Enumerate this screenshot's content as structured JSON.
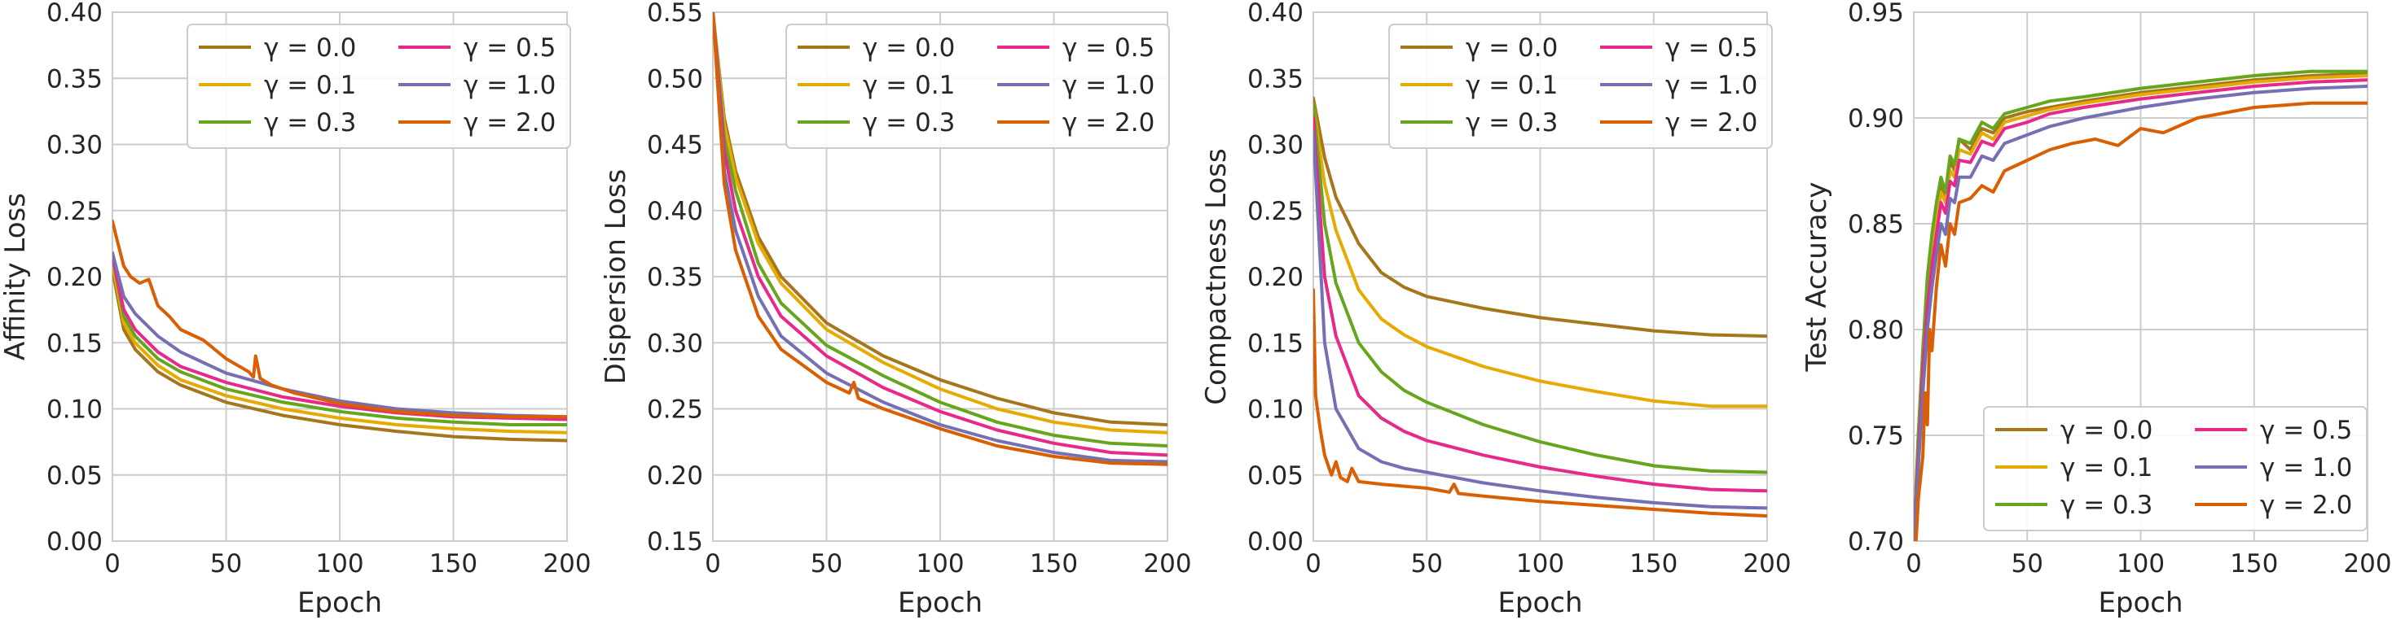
{
  "colors": {
    "g00": "#a6761d",
    "g01": "#e6ab02",
    "g03": "#66a61e",
    "g05": "#e7298a",
    "g10": "#7570b3",
    "g20": "#d95f02"
  },
  "chart_data": [
    {
      "type": "line",
      "title": "",
      "xlabel": "Epoch",
      "ylabel": "Affinity Loss",
      "xlim": [
        0,
        200
      ],
      "ylim": [
        0.0,
        0.4
      ],
      "xticks": [
        "0",
        "50",
        "100",
        "150",
        "200"
      ],
      "yticks": [
        "0.00",
        "0.05",
        "0.10",
        "0.15",
        "0.20",
        "0.25",
        "0.30",
        "0.35",
        "0.40"
      ],
      "grid": true,
      "legend": "upper-right",
      "series": [
        {
          "name": "γ = 0.0",
          "color_key": "g00",
          "x": [
            0,
            5,
            10,
            20,
            30,
            50,
            75,
            100,
            125,
            150,
            175,
            200
          ],
          "y": [
            0.205,
            0.16,
            0.145,
            0.128,
            0.118,
            0.105,
            0.095,
            0.088,
            0.083,
            0.079,
            0.077,
            0.076
          ]
        },
        {
          "name": "γ = 0.1",
          "color_key": "g01",
          "x": [
            0,
            5,
            10,
            20,
            30,
            50,
            75,
            100,
            125,
            150,
            175,
            200
          ],
          "y": [
            0.21,
            0.165,
            0.15,
            0.133,
            0.122,
            0.11,
            0.1,
            0.093,
            0.088,
            0.085,
            0.083,
            0.082
          ]
        },
        {
          "name": "γ = 0.3",
          "color_key": "g03",
          "x": [
            0,
            5,
            10,
            20,
            30,
            50,
            75,
            100,
            125,
            150,
            175,
            200
          ],
          "y": [
            0.215,
            0.17,
            0.155,
            0.138,
            0.128,
            0.115,
            0.105,
            0.098,
            0.093,
            0.09,
            0.088,
            0.088
          ]
        },
        {
          "name": "γ = 0.5",
          "color_key": "g05",
          "x": [
            0,
            5,
            10,
            20,
            30,
            50,
            75,
            100,
            125,
            150,
            175,
            200
          ],
          "y": [
            0.215,
            0.175,
            0.16,
            0.143,
            0.132,
            0.12,
            0.109,
            0.102,
            0.097,
            0.094,
            0.093,
            0.092
          ]
        },
        {
          "name": "γ = 1.0",
          "color_key": "g10",
          "x": [
            0,
            5,
            10,
            20,
            30,
            50,
            75,
            100,
            125,
            150,
            175,
            200
          ],
          "y": [
            0.218,
            0.185,
            0.172,
            0.155,
            0.143,
            0.127,
            0.115,
            0.106,
            0.1,
            0.097,
            0.095,
            0.094
          ]
        },
        {
          "name": "γ = 2.0",
          "color_key": "g20",
          "x": [
            0,
            2,
            5,
            8,
            12,
            16,
            20,
            25,
            30,
            40,
            50,
            60,
            62,
            63,
            65,
            70,
            80,
            100,
            125,
            150,
            175,
            200
          ],
          "y": [
            0.242,
            0.228,
            0.208,
            0.2,
            0.195,
            0.198,
            0.178,
            0.17,
            0.16,
            0.152,
            0.138,
            0.128,
            0.124,
            0.14,
            0.123,
            0.118,
            0.112,
            0.104,
            0.098,
            0.095,
            0.094,
            0.094
          ]
        }
      ]
    },
    {
      "type": "line",
      "title": "",
      "xlabel": "Epoch",
      "ylabel": "Dispersion Loss",
      "xlim": [
        0,
        200
      ],
      "ylim": [
        0.15,
        0.55
      ],
      "xticks": [
        "0",
        "50",
        "100",
        "150",
        "200"
      ],
      "yticks": [
        "0.15",
        "0.20",
        "0.25",
        "0.30",
        "0.35",
        "0.40",
        "0.45",
        "0.50",
        "0.55"
      ],
      "grid": true,
      "legend": "upper-right",
      "series": [
        {
          "name": "γ = 0.0",
          "color_key": "g00",
          "x": [
            0,
            5,
            10,
            20,
            30,
            50,
            75,
            100,
            125,
            150,
            175,
            200
          ],
          "y": [
            0.55,
            0.47,
            0.43,
            0.38,
            0.35,
            0.315,
            0.29,
            0.272,
            0.258,
            0.247,
            0.24,
            0.238
          ]
        },
        {
          "name": "γ = 0.1",
          "color_key": "g01",
          "x": [
            0,
            5,
            10,
            20,
            30,
            50,
            75,
            100,
            125,
            150,
            175,
            200
          ],
          "y": [
            0.55,
            0.465,
            0.425,
            0.375,
            0.345,
            0.31,
            0.285,
            0.265,
            0.25,
            0.24,
            0.234,
            0.232
          ]
        },
        {
          "name": "γ = 0.3",
          "color_key": "g03",
          "x": [
            0,
            5,
            10,
            20,
            30,
            50,
            75,
            100,
            125,
            150,
            175,
            200
          ],
          "y": [
            0.55,
            0.455,
            0.415,
            0.36,
            0.33,
            0.298,
            0.275,
            0.255,
            0.24,
            0.23,
            0.224,
            0.222
          ]
        },
        {
          "name": "γ = 0.5",
          "color_key": "g05",
          "x": [
            0,
            5,
            10,
            20,
            30,
            50,
            75,
            100,
            125,
            150,
            175,
            200
          ],
          "y": [
            0.55,
            0.445,
            0.4,
            0.35,
            0.32,
            0.29,
            0.266,
            0.248,
            0.234,
            0.224,
            0.217,
            0.215
          ]
        },
        {
          "name": "γ = 1.0",
          "color_key": "g10",
          "x": [
            0,
            5,
            10,
            20,
            30,
            50,
            75,
            100,
            125,
            150,
            175,
            200
          ],
          "y": [
            0.55,
            0.43,
            0.385,
            0.335,
            0.305,
            0.277,
            0.255,
            0.238,
            0.226,
            0.217,
            0.211,
            0.21
          ]
        },
        {
          "name": "γ = 2.0",
          "color_key": "g20",
          "x": [
            0,
            5,
            10,
            20,
            30,
            50,
            60,
            62,
            64,
            75,
            100,
            125,
            150,
            175,
            200
          ],
          "y": [
            0.55,
            0.42,
            0.37,
            0.32,
            0.295,
            0.27,
            0.262,
            0.27,
            0.258,
            0.25,
            0.235,
            0.222,
            0.214,
            0.209,
            0.208
          ]
        }
      ]
    },
    {
      "type": "line",
      "title": "",
      "xlabel": "Epoch",
      "ylabel": "Compactness Loss",
      "xlim": [
        0,
        200
      ],
      "ylim": [
        0.0,
        0.4
      ],
      "xticks": [
        "0",
        "50",
        "100",
        "150",
        "200"
      ],
      "yticks": [
        "0.00",
        "0.05",
        "0.10",
        "0.15",
        "0.20",
        "0.25",
        "0.30",
        "0.35",
        "0.40"
      ],
      "grid": true,
      "legend": "upper-right",
      "series": [
        {
          "name": "γ = 0.0",
          "color_key": "g00",
          "x": [
            0,
            5,
            10,
            20,
            30,
            40,
            50,
            75,
            100,
            125,
            150,
            175,
            200
          ],
          "y": [
            0.335,
            0.29,
            0.26,
            0.225,
            0.203,
            0.192,
            0.185,
            0.176,
            0.169,
            0.164,
            0.159,
            0.156,
            0.155
          ]
        },
        {
          "name": "γ = 0.1",
          "color_key": "g01",
          "x": [
            0,
            5,
            10,
            20,
            30,
            40,
            50,
            75,
            100,
            125,
            150,
            175,
            200
          ],
          "y": [
            0.33,
            0.27,
            0.235,
            0.19,
            0.168,
            0.156,
            0.147,
            0.132,
            0.121,
            0.113,
            0.106,
            0.102,
            0.102
          ]
        },
        {
          "name": "γ = 0.3",
          "color_key": "g03",
          "x": [
            0,
            5,
            10,
            20,
            30,
            40,
            50,
            75,
            100,
            125,
            150,
            175,
            200
          ],
          "y": [
            0.33,
            0.24,
            0.195,
            0.15,
            0.128,
            0.114,
            0.105,
            0.088,
            0.075,
            0.065,
            0.057,
            0.053,
            0.052
          ]
        },
        {
          "name": "γ = 0.5",
          "color_key": "g05",
          "x": [
            0,
            5,
            10,
            20,
            30,
            40,
            50,
            75,
            100,
            125,
            150,
            175,
            200
          ],
          "y": [
            0.32,
            0.2,
            0.155,
            0.11,
            0.093,
            0.083,
            0.076,
            0.065,
            0.056,
            0.049,
            0.043,
            0.039,
            0.038
          ]
        },
        {
          "name": "γ = 1.0",
          "color_key": "g10",
          "x": [
            0,
            5,
            10,
            20,
            30,
            40,
            50,
            75,
            100,
            125,
            150,
            175,
            200
          ],
          "y": [
            0.31,
            0.15,
            0.1,
            0.07,
            0.06,
            0.055,
            0.052,
            0.044,
            0.038,
            0.033,
            0.029,
            0.026,
            0.025
          ]
        },
        {
          "name": "γ = 2.0",
          "color_key": "g20",
          "x": [
            0,
            1,
            3,
            5,
            8,
            10,
            12,
            15,
            17,
            20,
            30,
            50,
            60,
            62,
            64,
            75,
            100,
            125,
            150,
            175,
            200
          ],
          "y": [
            0.19,
            0.11,
            0.085,
            0.065,
            0.05,
            0.06,
            0.048,
            0.045,
            0.055,
            0.045,
            0.043,
            0.04,
            0.037,
            0.043,
            0.036,
            0.034,
            0.03,
            0.027,
            0.024,
            0.021,
            0.019
          ]
        }
      ]
    },
    {
      "type": "line",
      "title": "",
      "xlabel": "Epoch",
      "ylabel": "Test Accuracy",
      "xlim": [
        0,
        200
      ],
      "ylim": [
        0.7,
        0.95
      ],
      "xticks": [
        "0",
        "50",
        "100",
        "150",
        "200"
      ],
      "yticks": [
        "0.70",
        "0.75",
        "0.80",
        "0.85",
        "0.90",
        "0.95"
      ],
      "grid": true,
      "legend": "lower-right",
      "series": [
        {
          "name": "γ = 0.0",
          "color_key": "g00",
          "x": [
            0,
            2,
            4,
            6,
            8,
            10,
            12,
            14,
            16,
            18,
            20,
            25,
            30,
            35,
            40,
            50,
            60,
            75,
            100,
            125,
            150,
            175,
            200
          ],
          "y": [
            0.7,
            0.75,
            0.79,
            0.82,
            0.84,
            0.855,
            0.87,
            0.86,
            0.88,
            0.875,
            0.89,
            0.885,
            0.895,
            0.893,
            0.9,
            0.903,
            0.905,
            0.908,
            0.912,
            0.915,
            0.918,
            0.92,
            0.921
          ]
        },
        {
          "name": "γ = 0.1",
          "color_key": "g01",
          "x": [
            0,
            2,
            4,
            6,
            8,
            10,
            12,
            14,
            16,
            18,
            20,
            25,
            30,
            35,
            40,
            50,
            60,
            75,
            100,
            125,
            150,
            175,
            200
          ],
          "y": [
            0.7,
            0.745,
            0.785,
            0.815,
            0.835,
            0.85,
            0.865,
            0.86,
            0.875,
            0.872,
            0.885,
            0.883,
            0.893,
            0.89,
            0.898,
            0.901,
            0.904,
            0.907,
            0.911,
            0.914,
            0.917,
            0.919,
            0.92
          ]
        },
        {
          "name": "γ = 0.3",
          "color_key": "g03",
          "x": [
            0,
            2,
            4,
            6,
            8,
            10,
            12,
            14,
            16,
            18,
            20,
            25,
            30,
            35,
            40,
            50,
            60,
            75,
            100,
            125,
            150,
            175,
            200
          ],
          "y": [
            0.7,
            0.75,
            0.79,
            0.825,
            0.845,
            0.86,
            0.872,
            0.865,
            0.882,
            0.878,
            0.89,
            0.888,
            0.898,
            0.895,
            0.902,
            0.905,
            0.908,
            0.91,
            0.914,
            0.917,
            0.92,
            0.922,
            0.922
          ]
        },
        {
          "name": "γ = 0.5",
          "color_key": "g05",
          "x": [
            0,
            2,
            4,
            6,
            8,
            10,
            12,
            14,
            16,
            18,
            20,
            25,
            30,
            35,
            40,
            50,
            60,
            75,
            100,
            125,
            150,
            175,
            200
          ],
          "y": [
            0.7,
            0.74,
            0.78,
            0.81,
            0.83,
            0.845,
            0.86,
            0.855,
            0.87,
            0.868,
            0.88,
            0.879,
            0.889,
            0.887,
            0.895,
            0.898,
            0.902,
            0.905,
            0.909,
            0.912,
            0.915,
            0.917,
            0.918
          ]
        },
        {
          "name": "γ = 1.0",
          "color_key": "g10",
          "x": [
            0,
            2,
            4,
            6,
            8,
            10,
            12,
            14,
            16,
            18,
            20,
            25,
            30,
            35,
            40,
            50,
            60,
            75,
            100,
            125,
            150,
            175,
            200
          ],
          "y": [
            0.7,
            0.735,
            0.77,
            0.8,
            0.82,
            0.835,
            0.85,
            0.845,
            0.862,
            0.86,
            0.872,
            0.872,
            0.882,
            0.88,
            0.888,
            0.892,
            0.896,
            0.9,
            0.905,
            0.909,
            0.912,
            0.914,
            0.915
          ]
        },
        {
          "name": "γ = 2.0",
          "color_key": "g20",
          "x": [
            0,
            2,
            4,
            5,
            6,
            7,
            8,
            10,
            12,
            14,
            16,
            18,
            20,
            25,
            30,
            35,
            40,
            50,
            60,
            70,
            80,
            90,
            100,
            110,
            125,
            150,
            175,
            200
          ],
          "y": [
            0.68,
            0.72,
            0.74,
            0.77,
            0.755,
            0.8,
            0.79,
            0.82,
            0.84,
            0.83,
            0.85,
            0.845,
            0.86,
            0.862,
            0.868,
            0.865,
            0.875,
            0.88,
            0.885,
            0.888,
            0.89,
            0.887,
            0.895,
            0.893,
            0.9,
            0.905,
            0.907,
            0.907
          ]
        }
      ]
    }
  ]
}
